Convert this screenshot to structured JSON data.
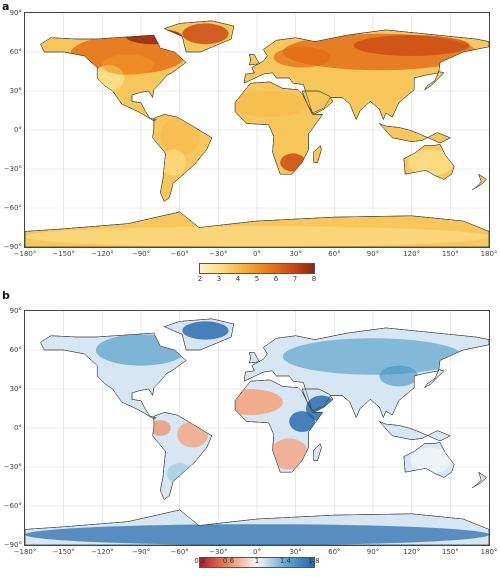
{
  "panels": [
    {
      "label": "a",
      "colorbar": {
        "ticks": [
          "2",
          "3",
          "4",
          "5",
          "6",
          "7",
          "8"
        ],
        "min": 2,
        "max": 8,
        "colors": [
          "#fff3c8",
          "#fde08a",
          "#f8bb4c",
          "#f29427",
          "#e36b17",
          "#c64511",
          "#8f240c"
        ]
      },
      "land_color": "#f8c75c",
      "ocean_color": "#ffffff"
    },
    {
      "label": "b",
      "colorbar": {
        "ticks": [
          "0.2",
          "0.6",
          "1",
          "1.4",
          "1.8"
        ],
        "min": 0.2,
        "max": 1.8,
        "colors": [
          "#b2182b",
          "#ef8a62",
          "#f7f7f7",
          "#67a9cf",
          "#2166ac"
        ]
      },
      "land_color": "#d6e6f2",
      "ocean_color": "#ffffff"
    }
  ],
  "axes": {
    "lat_ticks": [
      "90°",
      "60°",
      "30°",
      "0°",
      "−30°",
      "−60°",
      "−90°"
    ],
    "lon_ticks": [
      "−180°",
      "−150°",
      "−120°",
      "−90°",
      "−60°",
      "−30°",
      "0°",
      "30°",
      "60°",
      "90°",
      "120°",
      "150°",
      "180°"
    ]
  }
}
